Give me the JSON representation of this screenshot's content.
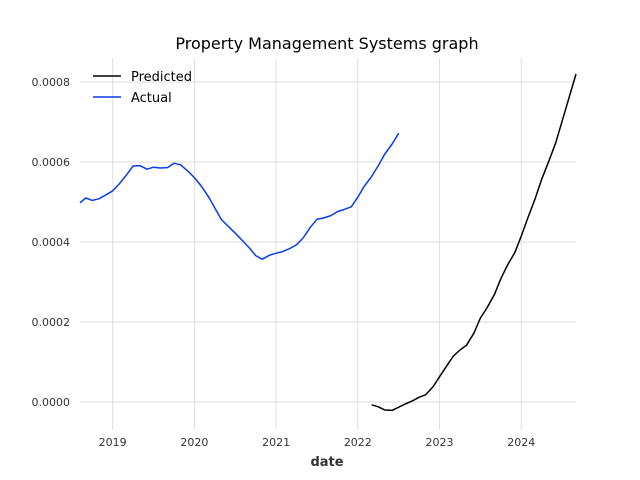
{
  "chart_data": {
    "type": "line",
    "title": "Property Management Systems graph",
    "xlabel": "date",
    "ylabel": "",
    "x_range": [
      2018.6,
      2024.67
    ],
    "ylim": [
      -7e-05,
      0.00086
    ],
    "x_ticks": [
      {
        "value": 2019,
        "label": "2019"
      },
      {
        "value": 2020,
        "label": "2020"
      },
      {
        "value": 2021,
        "label": "2021"
      },
      {
        "value": 2022,
        "label": "2022"
      },
      {
        "value": 2023,
        "label": "2023"
      },
      {
        "value": 2024,
        "label": "2024"
      }
    ],
    "y_ticks": [
      {
        "value": 0.0,
        "label": "0.0000"
      },
      {
        "value": 0.0002,
        "label": "0.0002"
      },
      {
        "value": 0.0004,
        "label": "0.0004"
      },
      {
        "value": 0.0006,
        "label": "0.0006"
      },
      {
        "value": 0.0008,
        "label": "0.0008"
      }
    ],
    "grid": true,
    "legend": "top-left",
    "series": [
      {
        "name": "Predicted",
        "color": "#000000",
        "x": [
          2022.17,
          2022.25,
          2022.33,
          2022.42,
          2022.5,
          2022.58,
          2022.67,
          2022.75,
          2022.83,
          2022.92,
          2023.0,
          2023.08,
          2023.17,
          2023.25,
          2023.33,
          2023.42,
          2023.5,
          2023.58,
          2023.67,
          2023.75,
          2023.83,
          2023.92,
          2024.0,
          2024.08,
          2024.17,
          2024.25,
          2024.33,
          2024.42,
          2024.5,
          2024.58,
          2024.67
        ],
        "values": [
          -7e-06,
          -1.2e-05,
          -2e-05,
          -2.1e-05,
          -1.3e-05,
          -5e-06,
          3e-06,
          1.2e-05,
          1.8e-05,
          3.8e-05,
          6.3e-05,
          8.8e-05,
          0.000115,
          0.00013,
          0.000142,
          0.000172,
          0.00021,
          0.000235,
          0.000268,
          0.000308,
          0.000342,
          0.000373,
          0.000415,
          0.00046,
          0.000508,
          0.000557,
          0.000598,
          0.000647,
          0.000702,
          0.000757,
          0.00082
        ]
      },
      {
        "name": "Actual",
        "color": "#0a3de6",
        "x": [
          2018.6,
          2018.67,
          2018.75,
          2018.83,
          2018.92,
          2019.0,
          2019.08,
          2019.17,
          2019.25,
          2019.33,
          2019.42,
          2019.5,
          2019.58,
          2019.67,
          2019.75,
          2019.83,
          2019.92,
          2020.0,
          2020.08,
          2020.17,
          2020.25,
          2020.33,
          2020.42,
          2020.5,
          2020.58,
          2020.67,
          2020.75,
          2020.83,
          2020.92,
          2021.0,
          2021.08,
          2021.17,
          2021.25,
          2021.33,
          2021.42,
          2021.5,
          2021.58,
          2021.67,
          2021.75,
          2021.83,
          2021.92,
          2022.0,
          2022.08,
          2022.17,
          2022.25,
          2022.33,
          2022.42,
          2022.5
        ],
        "values": [
          0.000498,
          0.00051,
          0.000504,
          0.000508,
          0.000518,
          0.000528,
          0.000545,
          0.000568,
          0.00059,
          0.000591,
          0.000582,
          0.000587,
          0.000585,
          0.000586,
          0.000597,
          0.000593,
          0.000577,
          0.000561,
          0.000541,
          0.000514,
          0.000485,
          0.000456,
          0.000438,
          0.000422,
          0.000405,
          0.000386,
          0.000366,
          0.000357,
          0.000367,
          0.000372,
          0.000376,
          0.000384,
          0.000393,
          0.00041,
          0.000437,
          0.000457,
          0.00046,
          0.000466,
          0.000476,
          0.000481,
          0.000488,
          0.000512,
          0.00054,
          0.000564,
          0.000591,
          0.00062,
          0.000645,
          0.000672
        ]
      }
    ]
  }
}
